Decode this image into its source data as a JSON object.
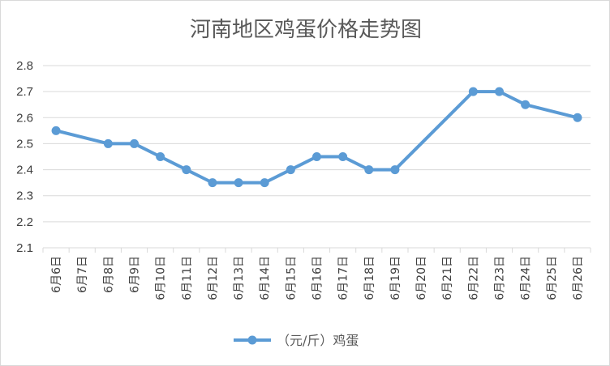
{
  "chart_data": {
    "type": "line",
    "title": "河南地区鸡蛋价格走势图",
    "xlabel": "",
    "ylabel": "",
    "categories": [
      "6月6日",
      "6月7日",
      "6月8日",
      "6月9日",
      "6月10日",
      "6月11日",
      "6月12日",
      "6月13日",
      "6月14日",
      "6月15日",
      "6月16日",
      "6月17日",
      "6月18日",
      "6月19日",
      "6月20日",
      "6月21日",
      "6月22日",
      "6月23日",
      "6月24日",
      "6月25日",
      "6月26日"
    ],
    "y_ticks": [
      "2.1",
      "2.2",
      "2.3",
      "2.4",
      "2.5",
      "2.6",
      "2.7",
      "2.8"
    ],
    "ylim": [
      2.1,
      2.8
    ],
    "grid": true,
    "legend_position": "bottom",
    "series": [
      {
        "name": "（元/斤）鸡蛋",
        "color": "#5b9bd5",
        "values": [
          2.55,
          null,
          2.5,
          2.5,
          2.45,
          2.4,
          2.35,
          2.35,
          2.35,
          2.4,
          2.45,
          2.45,
          2.4,
          2.4,
          null,
          null,
          2.7,
          2.7,
          2.65,
          null,
          2.6
        ]
      }
    ]
  }
}
